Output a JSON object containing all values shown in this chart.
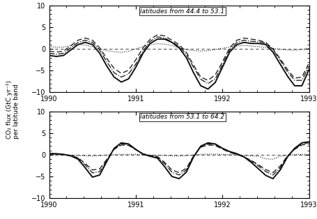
{
  "panel1_label": "latitudes from 44.4 to 53.1",
  "panel2_label": "latitudes from 53.1 to 64.2",
  "ylabel_line1": "CO₂ flux (GtC yr⁻¹)",
  "ylabel_line2": "per latitude band",
  "xlim": [
    1990.0,
    1993.0
  ],
  "ylim": [
    -10,
    10
  ],
  "yticks": [
    -10,
    -5,
    0,
    5,
    10
  ],
  "xticks": [
    1990,
    1991,
    1992,
    1993
  ],
  "lw_solid": 1.4,
  "lw_dashed": 0.9,
  "lw_dashdot": 0.9,
  "lw_dotted": 0.8,
  "lw_zeroline": 0.8,
  "fontsize_label": 7,
  "fontsize_tick": 7,
  "fontsize_annot": 6.5
}
